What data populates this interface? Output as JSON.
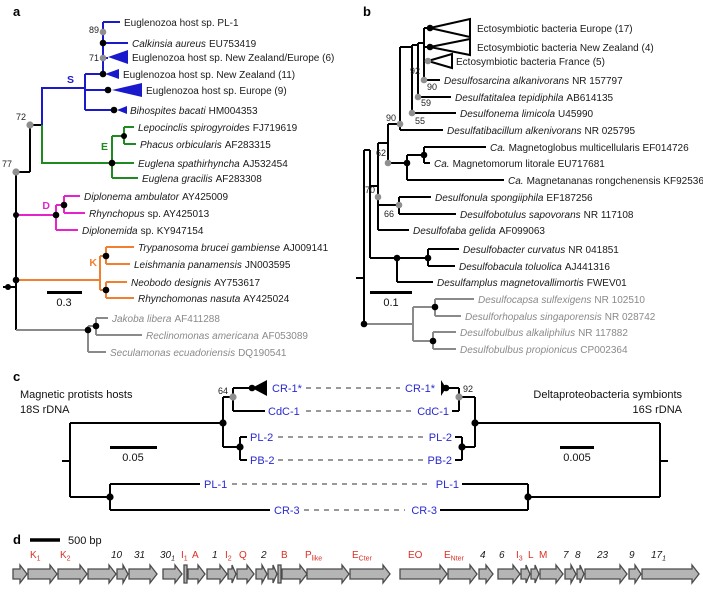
{
  "colors": {
    "clade_s_blue": "#1a1acc",
    "clade_e_green": "#1f8a1f",
    "clade_d_magenta": "#e622cb",
    "clade_k_orange": "#f08030",
    "outgroup_gray": "#8a8a8a",
    "host_symbiont_label_blue": "#2a2ad0",
    "gene_label_red": "#d93025",
    "gene_arrow_fill": "#b5b5b5"
  },
  "panel_a": {
    "letter": "a",
    "scale": "0.3",
    "boot": {
      "b89": "89",
      "b71": "71",
      "b72": "72",
      "b77": "77"
    },
    "clades": {
      "s": "S",
      "e": "E",
      "d": "D",
      "k": "K"
    },
    "taxa": [
      {
        "i": "",
        "r": "Euglenozoa host sp. PL-1"
      },
      {
        "i": "Calkinsia aureus",
        "r": "EU753419"
      },
      {
        "i": "",
        "r": "Euglenozoa host sp. New Zealand/Europe (6)"
      },
      {
        "i": "",
        "r": "Euglenozoa host sp. New Zealand (11)"
      },
      {
        "i": "",
        "r": "Euglenozoa host sp. Europe (9)"
      },
      {
        "i": "Bihospites bacati",
        "r": "HM004353"
      },
      {
        "i": "Lepocinclis spirogyroides",
        "r": "FJ719619"
      },
      {
        "i": "Phacus orbicularis",
        "r": "AF283315"
      },
      {
        "i": "Euglena spathirhyncha",
        "r": "AJ532454"
      },
      {
        "i": "Euglena gracilis",
        "r": "AF283308"
      },
      {
        "i": "Diplonema ambulator",
        "r": "AY425009"
      },
      {
        "i": "Rhynchopus",
        "r": "sp. AY425013"
      },
      {
        "i": "Diplonemida",
        "r": "sp. KY947154"
      },
      {
        "i": "Trypanosoma brucei gambiense",
        "r": "AJ009141"
      },
      {
        "i": "Leishmania panamensis",
        "r": "JN003595"
      },
      {
        "i": "Neobodo designis",
        "r": "AY753617"
      },
      {
        "i": "Rhynchomonas nasuta",
        "r": "AY425024"
      },
      {
        "i": "Jakoba libera",
        "r": "AF411288"
      },
      {
        "i": "Reclinomonas americana",
        "r": "AF053089"
      },
      {
        "i": "Seculamonas ecuadoriensis",
        "r": "DQ190541"
      }
    ]
  },
  "panel_b": {
    "letter": "b",
    "scale": "0.1",
    "boot": {
      "b92": "92",
      "b90a": "90",
      "b59": "59",
      "b55": "55",
      "b90b": "90",
      "b62": "62",
      "b70": "70",
      "b66": "66"
    },
    "taxa": [
      {
        "i": "",
        "r": "Ectosymbiotic bacteria Europe (17)"
      },
      {
        "i": "",
        "r": "Ectosymbiotic bacteria New Zealand (4)"
      },
      {
        "i": "",
        "r": "Ectosymbiotic bacteria France (5)"
      },
      {
        "i": "Desulfosarcina alkanivorans",
        "r": "NR 157797"
      },
      {
        "i": "Desulfatitalea tepidiphila",
        "r": "AB614135"
      },
      {
        "i": "Desulfonema limicola",
        "r": "U45990"
      },
      {
        "i": "Desulfatibacillum alkenivorans",
        "r": "NR 025795"
      },
      {
        "i": "Ca.",
        "r": "Magnetoglobus multicellularis EF014726"
      },
      {
        "i": "Ca.",
        "r": "Magnetomorum litorale EU717681"
      },
      {
        "i": "Ca.",
        "r": "Magnetananas rongchenensis KF925363"
      },
      {
        "i": "Desulfonula spongiiphila",
        "r": "EF187256"
      },
      {
        "i": "Desulfobotulus sapovorans",
        "r": "NR 117108"
      },
      {
        "i": "Desulfofaba gelida",
        "r": "AF099063"
      },
      {
        "i": "Desulfobacter curvatus",
        "r": "NR 041851"
      },
      {
        "i": "Desulfobacula toluolica",
        "r": "AJ441316"
      },
      {
        "i": "Desulfamplus magnetovallimortis",
        "r": "FWEV01"
      },
      {
        "i": "Desulfocapsa sulfexigens",
        "r": "NR 102510"
      },
      {
        "i": "Desulforhopalus singaporensis",
        "r": "NR 028742"
      },
      {
        "i": "Desulfobulbus alkaliphilus",
        "r": "NR 117882"
      },
      {
        "i": "Desulfobulbus propionicus",
        "r": "CP002364"
      }
    ]
  },
  "panel_c": {
    "letter": "c",
    "left_title_1": "Magnetic protists hosts",
    "left_title_2": "18S rDNA",
    "right_title_1": "Deltaproteobacteria symbionts",
    "right_title_2": "16S rDNA",
    "scale_left": "0.05",
    "scale_right": "0.005",
    "boot_left": "64",
    "boot_right": "92",
    "taxa": [
      "CR-1*",
      "CdC-1",
      "PL-2",
      "PB-2",
      "PL-1",
      "CR-3"
    ]
  },
  "panel_d": {
    "letter": "d",
    "scale": "500 bp",
    "genes": [
      {
        "t": "K",
        "s": "1"
      },
      {
        "t": "K",
        "s": "2"
      },
      {
        "t": "10",
        "s": ""
      },
      {
        "t": "31",
        "s": ""
      },
      {
        "t": "30",
        "s": "1"
      },
      {
        "t": "I",
        "s": "1"
      },
      {
        "t": "A",
        "s": ""
      },
      {
        "t": "1",
        "s": ""
      },
      {
        "t": "I",
        "s": "2"
      },
      {
        "t": "Q",
        "s": ""
      },
      {
        "t": "2",
        "s": ""
      },
      {
        "t": "B",
        "s": ""
      },
      {
        "t": "P",
        "s": "like"
      },
      {
        "t": "E",
        "s": "Cter"
      },
      {
        "t": "EO",
        "s": ""
      },
      {
        "t": "E",
        "s": "Nter"
      },
      {
        "t": "4",
        "s": ""
      },
      {
        "t": "6",
        "s": ""
      },
      {
        "t": "I",
        "s": "3"
      },
      {
        "t": "L",
        "s": ""
      },
      {
        "t": "M",
        "s": ""
      },
      {
        "t": "7",
        "s": ""
      },
      {
        "t": "8",
        "s": ""
      },
      {
        "t": "23",
        "s": ""
      },
      {
        "t": "9",
        "s": ""
      },
      {
        "t": "17",
        "s": "1"
      }
    ]
  }
}
